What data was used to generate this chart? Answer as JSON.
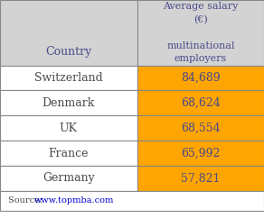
{
  "countries": [
    "Switzerland",
    "Denmark",
    "UK",
    "France",
    "Germany"
  ],
  "salaries": [
    "84,689",
    "68,624",
    "68,554",
    "65,992",
    "57,821"
  ],
  "header_col1": "Country",
  "header_col2_line1": "Average salary",
  "header_col2_line2": "(€)",
  "header_col2_line3": "multinational",
  "header_col2_line4": "employers",
  "source_text": "Source: ",
  "source_link": "www.topmba.com",
  "header_bg": "#d3d3d3",
  "data_col1_bg": "#ffffff",
  "data_col2_bg": "#ffa500",
  "border_color": "#888888",
  "header_text_color": "#4a4a8a",
  "data_text_color": "#4a4a4a",
  "salary_text_color": "#4a4a8a",
  "source_color": "#4a4a4a",
  "link_color": "#0000cc",
  "fig_bg": "#ffffff"
}
